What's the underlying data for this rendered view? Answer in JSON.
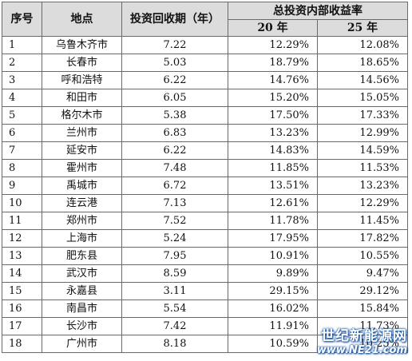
{
  "table": {
    "headers": {
      "seq": "序号",
      "location": "地点",
      "payback": "投资回收期（年）",
      "irr_group": "总投资内部收益率",
      "irr_20": "20 年",
      "irr_25": "25 年"
    },
    "rows": [
      {
        "seq": "1",
        "location": "乌鲁木齐市",
        "payback": "7.22",
        "irr20": "12.29%",
        "irr25": "12.08%"
      },
      {
        "seq": "2",
        "location": "长春市",
        "payback": "5.03",
        "irr20": "18.79%",
        "irr25": "18.65%"
      },
      {
        "seq": "3",
        "location": "呼和浩特",
        "payback": "6.22",
        "irr20": "14.76%",
        "irr25": "14.56%"
      },
      {
        "seq": "4",
        "location": "和田市",
        "payback": "6.05",
        "irr20": "15.20%",
        "irr25": "15.05%"
      },
      {
        "seq": "5",
        "location": "格尔木市",
        "payback": "5.38",
        "irr20": "17.50%",
        "irr25": "17.33%"
      },
      {
        "seq": "6",
        "location": "兰州市",
        "payback": "6.83",
        "irr20": "13.23%",
        "irr25": "12.99%"
      },
      {
        "seq": "7",
        "location": "延安市",
        "payback": "6.22",
        "irr20": "14.83%",
        "irr25": "14.59%"
      },
      {
        "seq": "8",
        "location": "霍州市",
        "payback": "7.48",
        "irr20": "11.85%",
        "irr25": "11.53%"
      },
      {
        "seq": "9",
        "location": "禹城市",
        "payback": "6.72",
        "irr20": "13.51%",
        "irr25": "13.23%"
      },
      {
        "seq": "10",
        "location": "连云港",
        "payback": "7.13",
        "irr20": "12.61%",
        "irr25": "12.29%"
      },
      {
        "seq": "11",
        "location": "郑州市",
        "payback": "7.52",
        "irr20": "11.78%",
        "irr25": "11.45%"
      },
      {
        "seq": "12",
        "location": "上海市",
        "payback": "5.24",
        "irr20": "17.95%",
        "irr25": "17.82%"
      },
      {
        "seq": "13",
        "location": "肥东县",
        "payback": "7.95",
        "irr20": "10.91%",
        "irr25": "10.55%"
      },
      {
        "seq": "14",
        "location": "武汉市",
        "payback": "8.59",
        "irr20": "9.89%",
        "irr25": "9.47%"
      },
      {
        "seq": "15",
        "location": "永嘉县",
        "payback": "3.11",
        "irr20": "29.15%",
        "irr25": "29.12%"
      },
      {
        "seq": "16",
        "location": "南昌市",
        "payback": "5.54",
        "irr20": "16.02%",
        "irr25": "15.84%"
      },
      {
        "seq": "17",
        "location": "长沙市",
        "payback": "7.42",
        "irr20": "11.91%",
        "irr25": "11.73%"
      },
      {
        "seq": "18",
        "location": "广州市",
        "payback": "8.18",
        "irr20": "10.59%",
        "irr25": "10.25%"
      }
    ]
  },
  "watermark": {
    "name": "世纪新能源网",
    "url": "www.NE21.com"
  }
}
